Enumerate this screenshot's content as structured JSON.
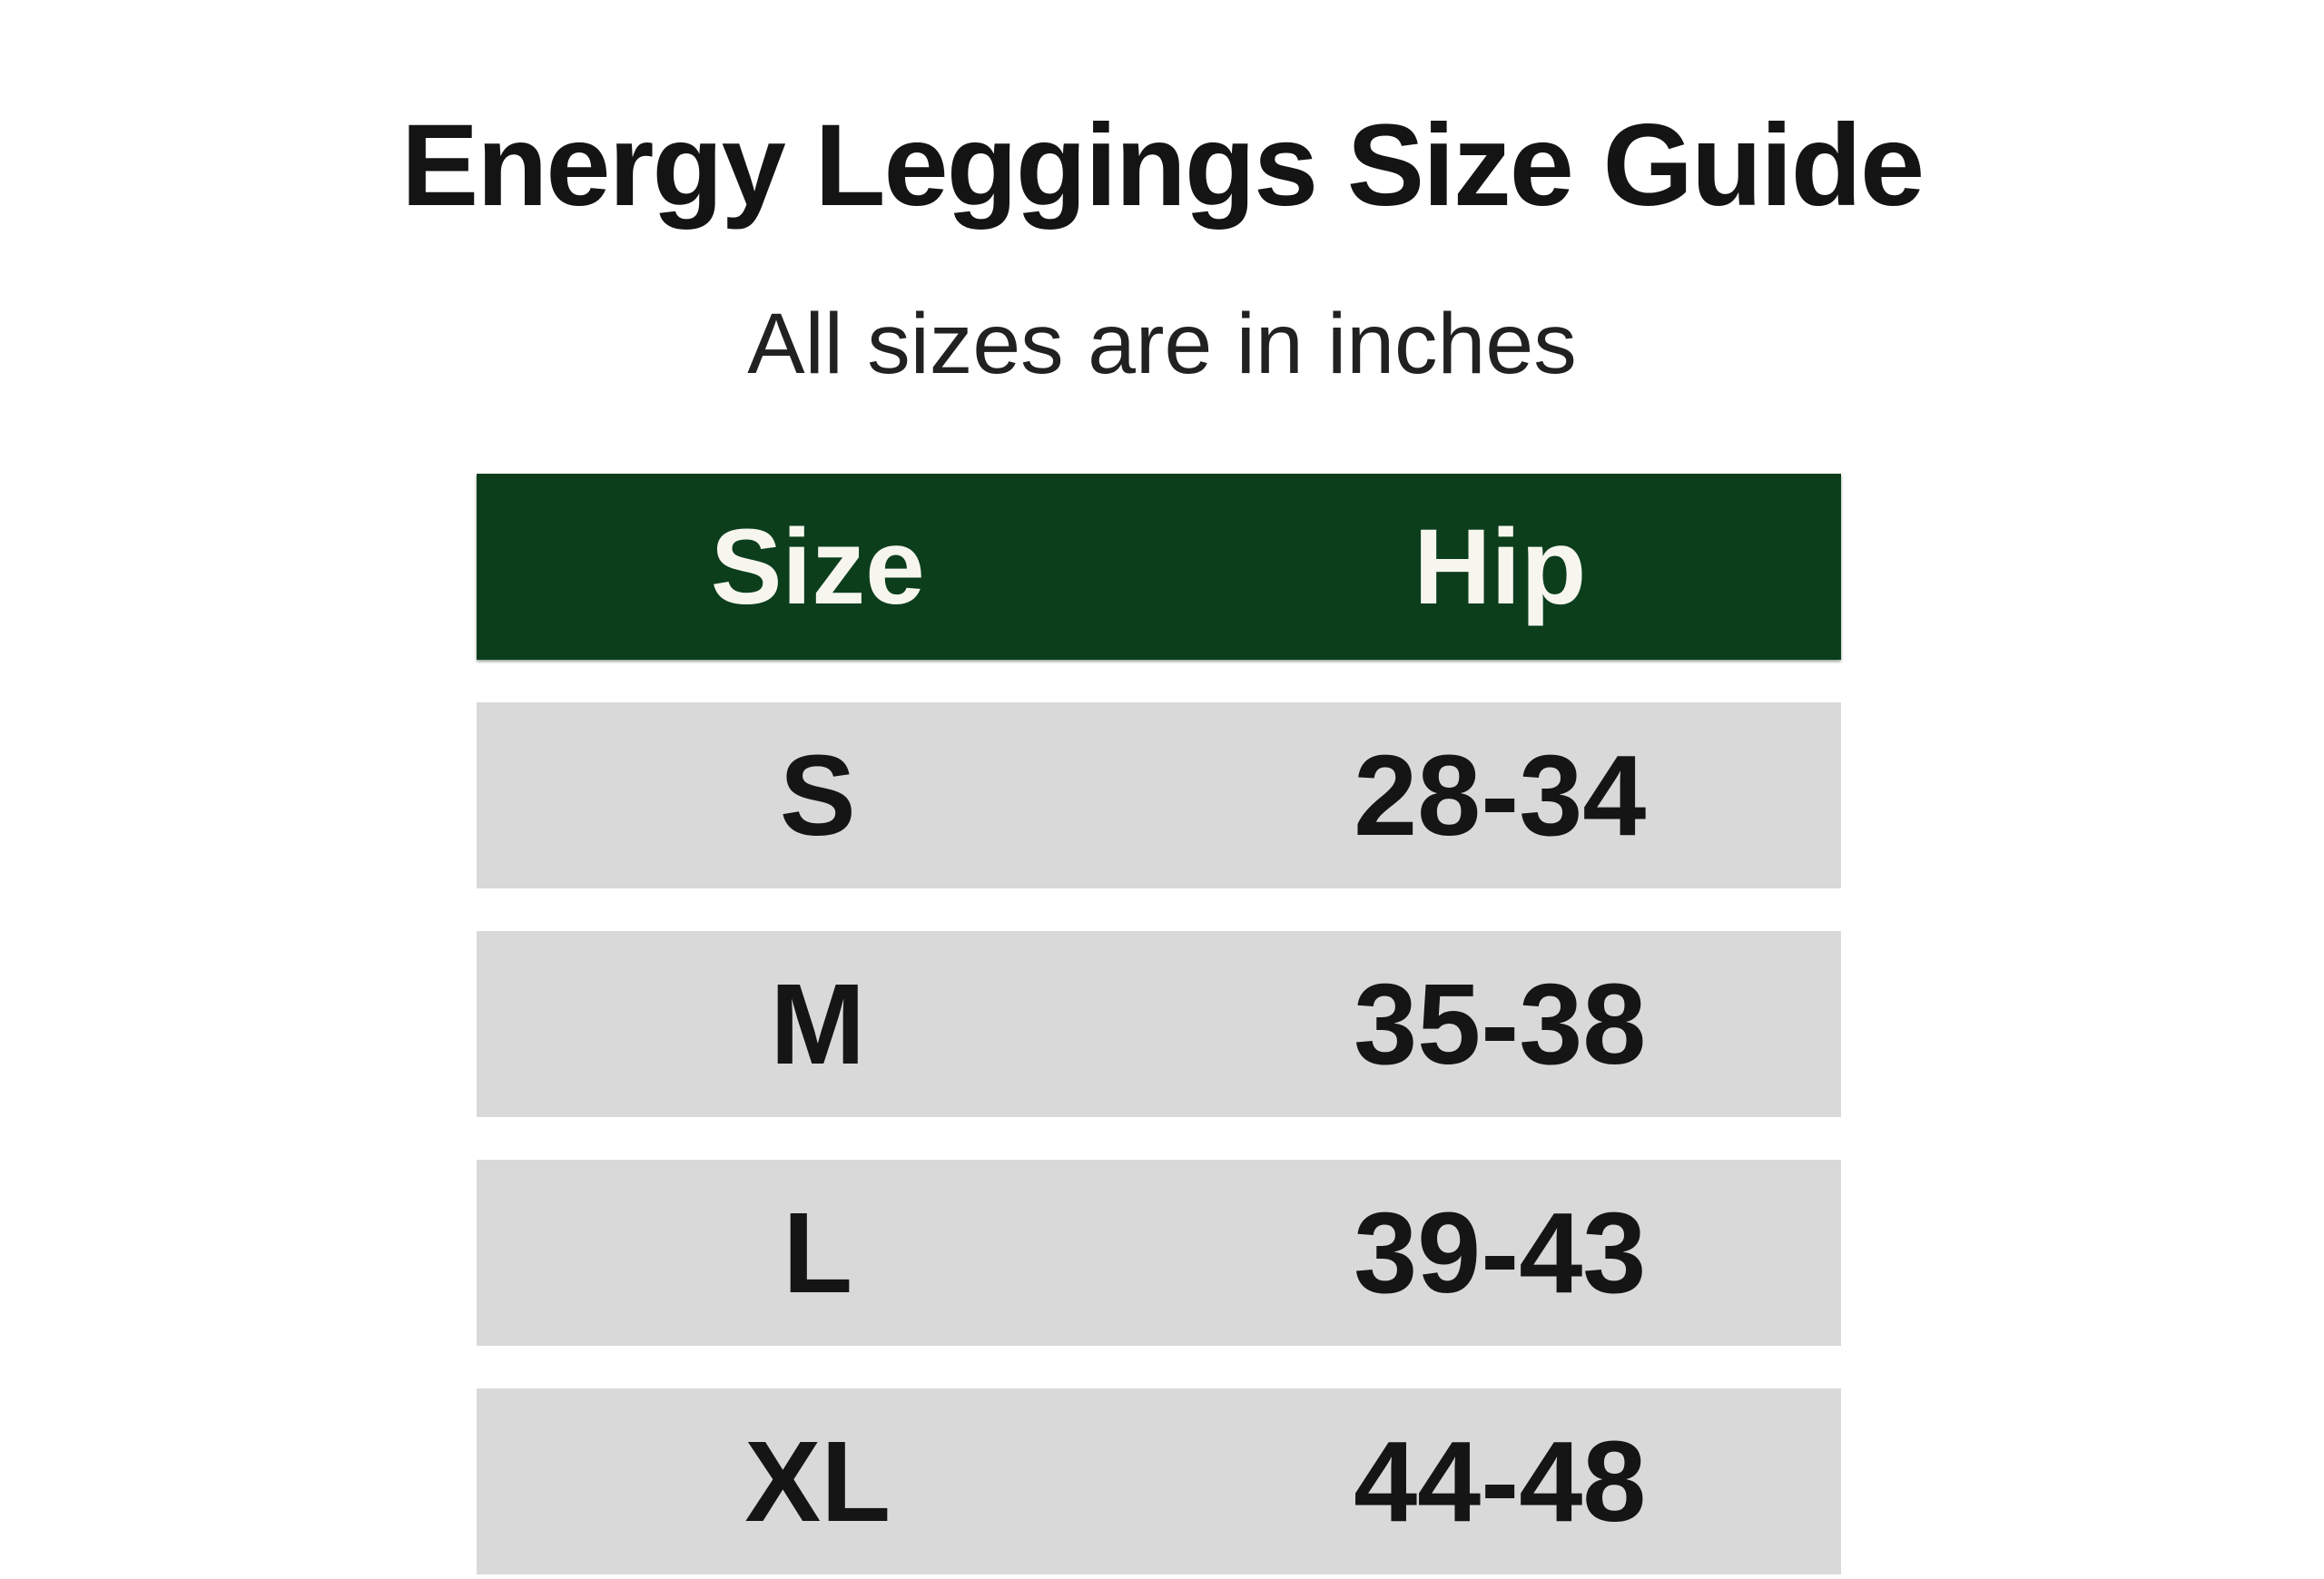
{
  "page": {
    "title": "Energy Leggings Size Guide",
    "subtitle": "All sizes are in inches"
  },
  "table": {
    "columns": [
      "Size",
      "Hip"
    ],
    "rows": [
      {
        "size": "S",
        "hip": "28-34"
      },
      {
        "size": "M",
        "hip": "35-38"
      },
      {
        "size": "L",
        "hip": "39-43"
      },
      {
        "size": "XL",
        "hip": "44-48"
      }
    ],
    "colors": {
      "header_bg": "#0c3e1c",
      "header_text": "#f6f6ef",
      "row_bg": "#d9d9d9",
      "row_text": "#151515"
    }
  },
  "chart_data": {
    "type": "table",
    "title": "Energy Leggings Size Guide",
    "subtitle": "All sizes are in inches",
    "units": "inches",
    "columns": [
      "Size",
      "Hip"
    ],
    "rows": [
      [
        "S",
        "28-34"
      ],
      [
        "M",
        "35-38"
      ],
      [
        "L",
        "39-43"
      ],
      [
        "XL",
        "44-48"
      ]
    ]
  }
}
